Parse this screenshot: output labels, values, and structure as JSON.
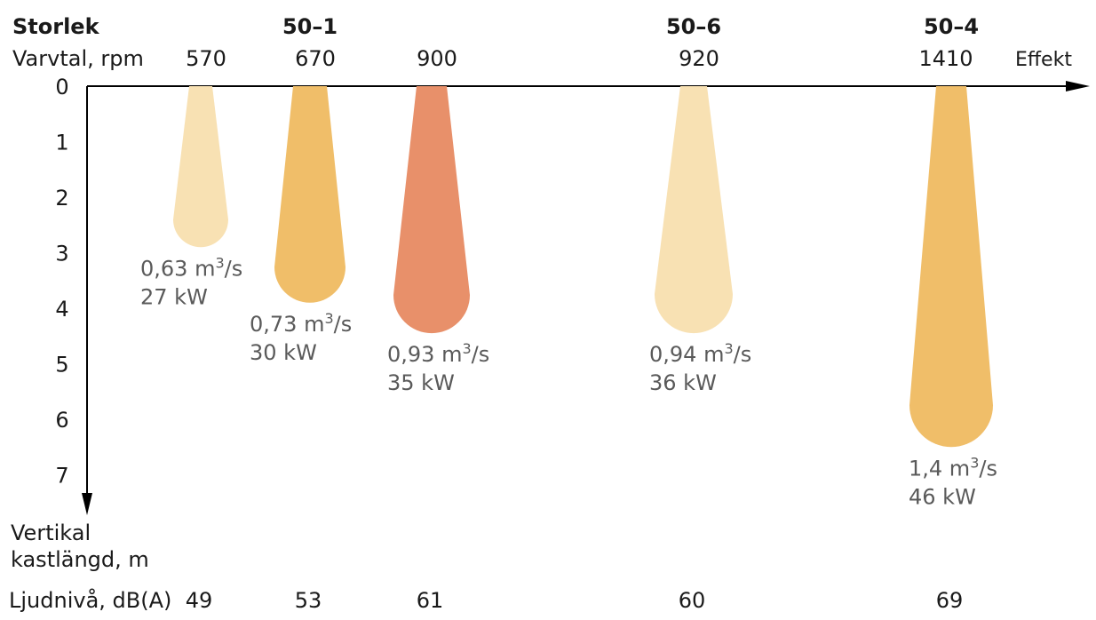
{
  "chart_data": {
    "type": "plume",
    "row_labels": {
      "size": "Storlek",
      "rpm": "Varvtal, rpm",
      "effect": "Effekt",
      "sound": "Ljudnivå, dB(A)",
      "ylabel_line1": "Vertikal",
      "ylabel_line2": "kastlängd, m"
    },
    "yticks": [
      "0",
      "1",
      "2",
      "3",
      "4",
      "5",
      "6",
      "7"
    ],
    "ylim": [
      0,
      7.6
    ],
    "colors": {
      "light": "#f8e1b3",
      "medium": "#f0be69",
      "strong": "#e8906a",
      "axis": "#000000",
      "annotation": "#5a5a5a"
    },
    "items": [
      {
        "size": "",
        "rpm": "570",
        "throw": 2.9,
        "airflow_value": "0,63",
        "airflow_unit": "m",
        "airflow_exp": "3",
        "airflow_tail": "/s",
        "power": "27 kW",
        "sound": "49",
        "color": "#f8e1b3"
      },
      {
        "size": "50–1",
        "rpm": "670",
        "throw": 3.9,
        "airflow_value": "0,73",
        "airflow_unit": "m",
        "airflow_exp": "3",
        "airflow_tail": "/s",
        "power": "30 kW",
        "sound": "53",
        "color": "#f0be69"
      },
      {
        "size": "",
        "rpm": "900",
        "throw": 4.45,
        "airflow_value": "0,93",
        "airflow_unit": "m",
        "airflow_exp": "3",
        "airflow_tail": "/s",
        "power": "35 kW",
        "sound": "61",
        "color": "#e8906a"
      },
      {
        "size": "50–6",
        "rpm": "920",
        "throw": 4.45,
        "airflow_value": "0,94",
        "airflow_unit": "m",
        "airflow_exp": "3",
        "airflow_tail": "/s",
        "power": "36 kW",
        "sound": "60",
        "color": "#f8e1b3"
      },
      {
        "size": "50–4",
        "rpm": "1410",
        "throw": 6.5,
        "airflow_value": "1,4",
        "airflow_unit": "m",
        "airflow_exp": "3",
        "airflow_tail": "/s",
        "power": "46 kW",
        "sound": "69",
        "color": "#f0be69"
      }
    ]
  }
}
